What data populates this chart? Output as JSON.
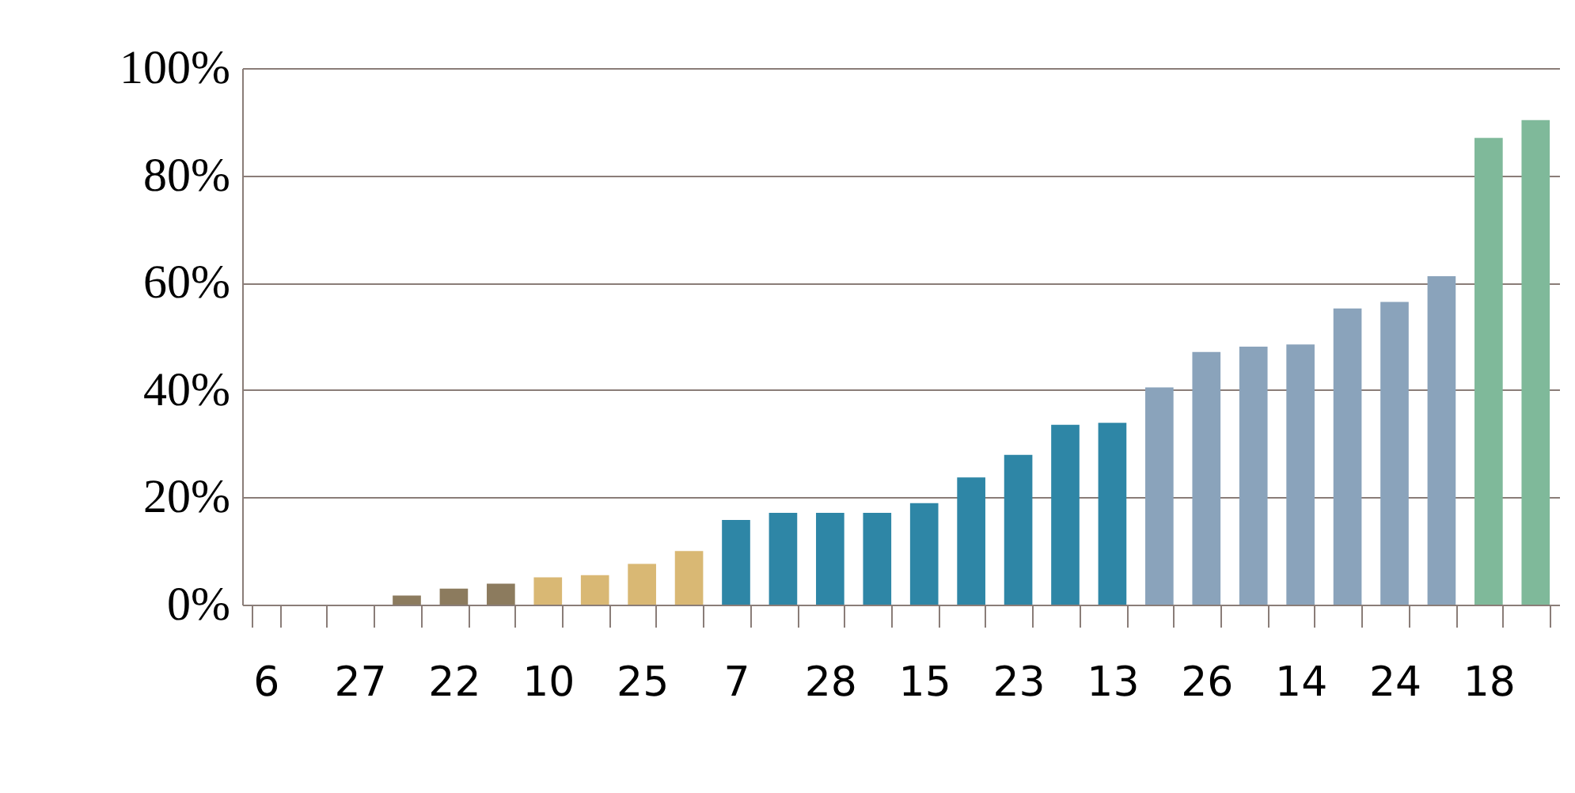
{
  "chart_data": {
    "type": "bar",
    "categories": [
      "6",
      null,
      "27",
      null,
      "22",
      null,
      "10",
      null,
      "25",
      null,
      "7",
      null,
      "28",
      null,
      "15",
      null,
      "23",
      null,
      "13",
      null,
      "26",
      null,
      "14",
      null,
      "24",
      null,
      "18",
      null
    ],
    "values": [
      0,
      0,
      0,
      1.7,
      3.0,
      3.9,
      5.1,
      5.5,
      7.6,
      10.0,
      15.8,
      17.1,
      17.1,
      17.1,
      18.9,
      23.7,
      27.9,
      33.5,
      33.9,
      40.5,
      47.1,
      48.1,
      48.5,
      55.2,
      56.4,
      61.2,
      87.0,
      90.3
    ],
    "colors": [
      "#8c7b5e",
      "#8c7b5e",
      "#8c7b5e",
      "#8c7b5e",
      "#8c7b5e",
      "#8c7b5e",
      "#d9b874",
      "#d9b874",
      "#d9b874",
      "#d9b874",
      "#2e86a6",
      "#2e86a6",
      "#2e86a6",
      "#2e86a6",
      "#2e86a6",
      "#2e86a6",
      "#2e86a6",
      "#2e86a6",
      "#2e86a6",
      "#8aa3bb",
      "#8aa3bb",
      "#8aa3bb",
      "#8aa3bb",
      "#8aa3bb",
      "#8aa3bb",
      "#8aa3bb",
      "#7fb99a",
      "#7fb99a"
    ],
    "ylim": [
      0,
      100
    ],
    "yticks": [
      {
        "value": 0,
        "label": "0%"
      },
      {
        "value": 20,
        "label": "20%"
      },
      {
        "value": 40,
        "label": "40%"
      },
      {
        "value": 60,
        "label": "60%"
      },
      {
        "value": 80,
        "label": "80%"
      },
      {
        "value": 100,
        "label": "100%"
      }
    ],
    "grid": "y"
  }
}
